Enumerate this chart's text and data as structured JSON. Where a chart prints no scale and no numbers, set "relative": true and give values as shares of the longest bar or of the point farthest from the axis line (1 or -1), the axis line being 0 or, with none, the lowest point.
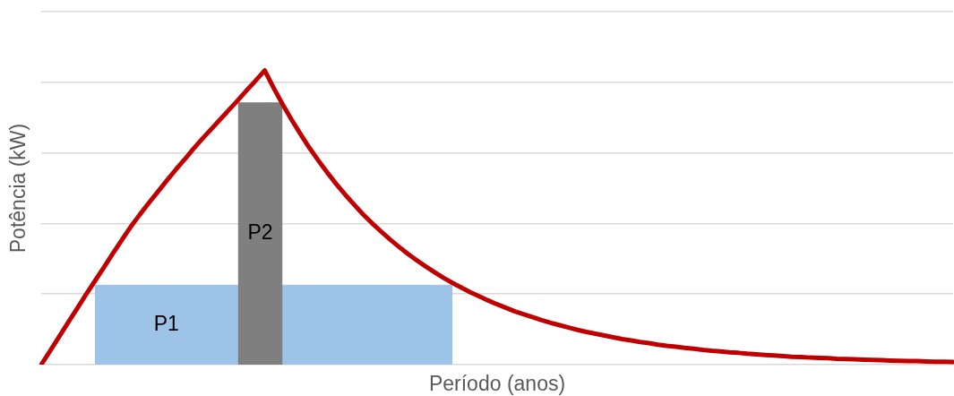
{
  "chart_data": {
    "type": "line",
    "relative": true,
    "grid": "y",
    "xlabel": "Período (anos)",
    "ylabel": "Potência (kW)",
    "categories": [
      null,
      null,
      null,
      null,
      null,
      null,
      null,
      null,
      null,
      null,
      null,
      null,
      null,
      null,
      null,
      null,
      null,
      null,
      null,
      null,
      null,
      null,
      null,
      null,
      null,
      null,
      null,
      null,
      null,
      null,
      null,
      null,
      null,
      null,
      null,
      null,
      null,
      null,
      null,
      null,
      null,
      null,
      null,
      null,
      null,
      null,
      null,
      null,
      null,
      null,
      null,
      null,
      null,
      null,
      null,
      null,
      null,
      null,
      null,
      null,
      null,
      null,
      null,
      null,
      null,
      null,
      null,
      null,
      null,
      null,
      null,
      null,
      null,
      null,
      null,
      null,
      null,
      null,
      null,
      null,
      null,
      null,
      null,
      null,
      null,
      null,
      null,
      null,
      null,
      null,
      null,
      null,
      null,
      null,
      null,
      null,
      null,
      null,
      null,
      null,
      null,
      null,
      null
    ],
    "series": [
      {
        "name": "P1",
        "type": "area",
        "color": "#9dc3e6",
        "values": [
          null,
          null,
          null,
          null,
          null,
          null,
          0.27,
          0.27,
          0.27,
          0.27,
          0.27,
          0.27,
          0.27,
          0.27,
          0.27,
          0.27,
          0.27,
          0.27,
          0.27,
          0.27,
          0.27,
          0.27,
          0.27,
          0.27,
          0.27,
          0.27,
          0.27,
          0.27,
          0.27,
          0.27,
          0.27,
          0.27,
          0.27,
          0.27,
          0.27,
          0.27,
          0.27,
          0.27,
          0.27,
          0.27,
          0.27,
          0.27,
          0.27,
          0.27,
          0.27,
          0.27,
          0.27,
          null,
          null,
          null,
          null,
          null,
          null,
          null,
          null,
          null,
          null,
          null,
          null,
          null,
          null,
          null,
          null,
          null,
          null,
          null,
          null,
          null,
          null,
          null,
          null,
          null,
          null,
          null,
          null,
          null,
          null,
          null,
          null,
          null,
          null,
          null,
          null,
          null,
          null,
          null,
          null,
          null,
          null,
          null,
          null,
          null,
          null,
          null,
          null,
          null,
          null,
          null,
          null,
          null,
          null,
          null,
          null
        ]
      },
      {
        "name": "P2",
        "type": "area",
        "color": "#7f7f7f",
        "values": [
          null,
          null,
          null,
          null,
          null,
          null,
          null,
          null,
          null,
          null,
          null,
          null,
          null,
          null,
          null,
          null,
          null,
          null,
          null,
          null,
          null,
          null,
          0.89,
          0.89,
          0.89,
          0.89,
          0.89,
          0.89,
          null,
          null,
          null,
          null,
          null,
          null,
          null,
          null,
          null,
          null,
          null,
          null,
          null,
          null,
          null,
          null,
          null,
          null,
          null,
          null,
          null,
          null,
          null,
          null,
          null,
          null,
          null,
          null,
          null,
          null,
          null,
          null,
          null,
          null,
          null,
          null,
          null,
          null,
          null,
          null,
          null,
          null,
          null,
          null,
          null,
          null,
          null,
          null,
          null,
          null,
          null,
          null,
          null,
          null,
          null,
          null,
          null,
          null,
          null,
          null,
          null,
          null,
          null,
          null,
          null,
          null,
          null,
          null,
          null,
          null,
          null,
          null,
          null,
          null,
          null
        ]
      },
      {
        "color": "#c00000",
        "values": [
          0,
          0.047,
          0.095,
          0.143,
          0.19,
          0.238,
          0.284,
          0.33,
          0.377,
          0.423,
          0.468,
          0.509,
          0.548,
          0.586,
          0.624,
          0.661,
          0.696,
          0.733,
          0.767,
          0.8,
          0.833,
          0.866,
          0.899,
          0.933,
          0.966,
          1,
          0.941,
          0.885,
          0.833,
          0.784,
          0.737,
          0.694,
          0.653,
          0.614,
          0.578,
          0.544,
          0.511,
          0.481,
          0.453,
          0.426,
          0.401,
          0.377,
          0.355,
          0.334,
          0.314,
          0.295,
          0.278,
          0.262,
          0.246,
          0.232,
          0.218,
          0.205,
          0.193,
          0.181,
          0.171,
          0.161,
          0.151,
          0.142,
          0.134,
          0.126,
          0.118,
          0.111,
          0.105,
          0.099,
          0.093,
          0.087,
          0.082,
          0.077,
          0.073,
          0.068,
          0.064,
          0.061,
          0.057,
          0.054,
          0.05,
          0.047,
          0.045,
          0.042,
          0.04,
          0.037,
          0.035,
          0.033,
          0.031,
          0.029,
          0.027,
          0.026,
          0.024,
          0.023,
          0.022,
          0.02,
          0.019,
          0.018,
          0.017,
          0.016,
          0.015,
          0.014,
          0.013,
          0.012,
          0.012,
          0.011,
          0.01,
          0.01,
          0.009
        ]
      }
    ]
  }
}
